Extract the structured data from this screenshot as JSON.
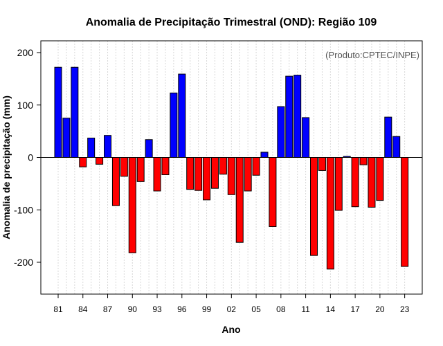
{
  "chart_data": {
    "type": "bar",
    "title": "Anomalia de Precipitação Trimestral (OND): Região 109",
    "xlabel": "Ano",
    "ylabel": "Anomalia de precipitação (mm)",
    "credit": "(Produto:CPTEC/INPE)",
    "ylim": [
      -260,
      225
    ],
    "yticks": [
      -200,
      -100,
      0,
      100,
      200
    ],
    "years": [
      1981,
      1982,
      1983,
      1984,
      1985,
      1986,
      1987,
      1988,
      1989,
      1990,
      1991,
      1992,
      1993,
      1994,
      1995,
      1996,
      1997,
      1998,
      1999,
      2000,
      2001,
      2002,
      2003,
      2004,
      2005,
      2006,
      2007,
      2008,
      2009,
      2010,
      2011,
      2012,
      2013,
      2014,
      2015,
      2016,
      2017,
      2018,
      2019,
      2020,
      2021,
      2022,
      2023
    ],
    "values": [
      172,
      75,
      172,
      -18,
      37,
      -13,
      42,
      -92,
      -36,
      -182,
      -46,
      34,
      -64,
      -33,
      123,
      159,
      -61,
      -63,
      -81,
      -59,
      -32,
      -71,
      -162,
      -64,
      -34,
      10,
      -132,
      97,
      155,
      157,
      76,
      -187,
      -25,
      -213,
      -101,
      2,
      -94,
      -14,
      -95,
      -82,
      77,
      40,
      -208
    ],
    "xtick_labels": [
      "81",
      "84",
      "87",
      "90",
      "93",
      "96",
      "99",
      "02",
      "05",
      "08",
      "11",
      "14",
      "17",
      "20",
      "23"
    ],
    "colors": {
      "positive": "#0000ff",
      "negative": "#ff0000",
      "outline": "#000000"
    },
    "grid": true
  }
}
